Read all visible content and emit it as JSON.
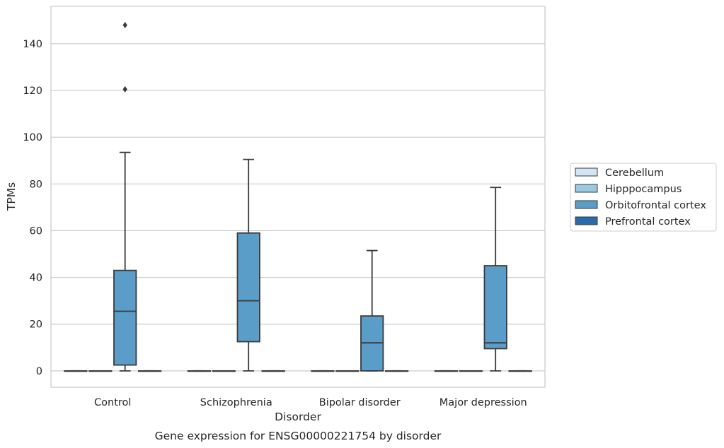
{
  "chart_data": {
    "type": "box",
    "title": "",
    "caption": "Gene expression for ENSG00000221754 by disorder",
    "xlabel": "Disorder",
    "ylabel": "TPMs",
    "ylim": [
      -7,
      156
    ],
    "yticks": [
      0,
      20,
      40,
      60,
      80,
      100,
      120,
      140
    ],
    "grid": "horizontal",
    "legend_position": "right",
    "categories": [
      "Control",
      "Schizophrenia",
      "Bipolar disorder",
      "Major depression"
    ],
    "series": [
      {
        "name": "Cerebellum",
        "color": "#d3e4f3",
        "boxes": [
          {
            "min": 0,
            "q1": 0,
            "median": 0,
            "q3": 0,
            "max": 0,
            "outliers": []
          },
          {
            "min": 0,
            "q1": 0,
            "median": 0,
            "q3": 0,
            "max": 0,
            "outliers": []
          },
          {
            "min": 0,
            "q1": 0,
            "median": 0,
            "q3": 0,
            "max": 0,
            "outliers": []
          },
          {
            "min": 0,
            "q1": 0,
            "median": 0,
            "q3": 0,
            "max": 0,
            "outliers": []
          }
        ]
      },
      {
        "name": "Hipppocampus",
        "color": "#9ac8e0",
        "boxes": [
          {
            "min": 0,
            "q1": 0,
            "median": 0,
            "q3": 0,
            "max": 0,
            "outliers": []
          },
          {
            "min": 0,
            "q1": 0,
            "median": 0,
            "q3": 0,
            "max": 0,
            "outliers": []
          },
          {
            "min": 0,
            "q1": 0,
            "median": 0,
            "q3": 0,
            "max": 0,
            "outliers": []
          },
          {
            "min": 0,
            "q1": 0,
            "median": 0,
            "q3": 0,
            "max": 0,
            "outliers": []
          }
        ]
      },
      {
        "name": "Orbitofrontal cortex",
        "color": "#5a9dc8",
        "boxes": [
          {
            "min": 0,
            "q1": 2.5,
            "median": 25.5,
            "q3": 43,
            "max": 93.5,
            "outliers": [
              120.5,
              148
            ]
          },
          {
            "min": 0,
            "q1": 12.5,
            "median": 30,
            "q3": 59,
            "max": 90.5,
            "outliers": []
          },
          {
            "min": 0,
            "q1": 0,
            "median": 12,
            "q3": 23.5,
            "max": 51.5,
            "outliers": []
          },
          {
            "min": 0,
            "q1": 9.5,
            "median": 12,
            "q3": 45,
            "max": 78.5,
            "outliers": []
          }
        ]
      },
      {
        "name": "Prefrontal cortex",
        "color": "#2b6aa8",
        "boxes": [
          {
            "min": 0,
            "q1": 0,
            "median": 0,
            "q3": 0,
            "max": 0,
            "outliers": []
          },
          {
            "min": 0,
            "q1": 0,
            "median": 0,
            "q3": 0,
            "max": 0,
            "outliers": []
          },
          {
            "min": 0,
            "q1": 0,
            "median": 0,
            "q3": 0,
            "max": 0,
            "outliers": []
          },
          {
            "min": 0,
            "q1": 0,
            "median": 0,
            "q3": 0,
            "max": 0,
            "outliers": []
          }
        ]
      }
    ]
  }
}
